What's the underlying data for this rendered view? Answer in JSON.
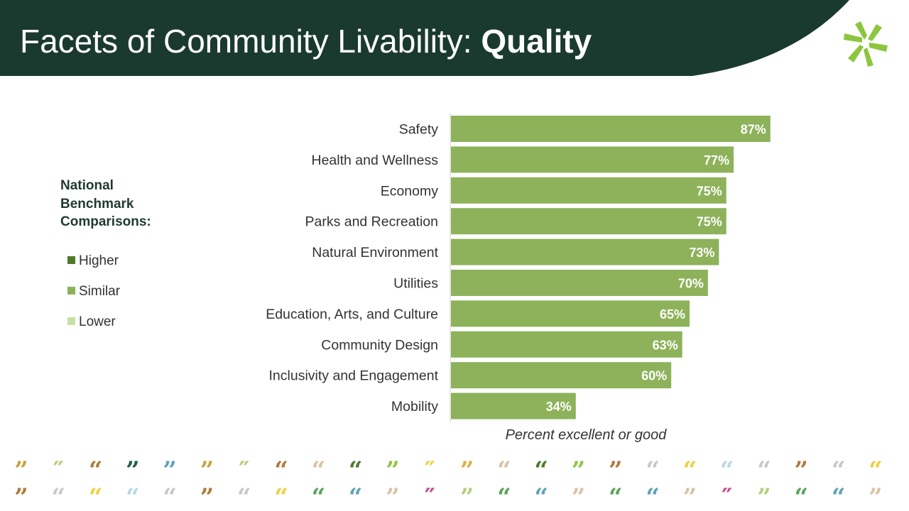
{
  "title": {
    "prefix": "Facets of Community Livability: ",
    "bold": "Quality"
  },
  "colors": {
    "header": "#1b3a2f",
    "bar": "#8db25a",
    "higher": "#4f7a2a",
    "similar": "#8db25a",
    "lower": "#c8e0a6",
    "logo": "#8cc63f"
  },
  "legend": {
    "title": "National Benchmark Comparisons:",
    "items": [
      {
        "label": "Higher",
        "color": "#4f7a2a"
      },
      {
        "label": "Similar",
        "color": "#8db25a"
      },
      {
        "label": "Lower",
        "color": "#c8e0a6"
      }
    ]
  },
  "chart_data": {
    "type": "bar",
    "orientation": "horizontal",
    "categories": [
      "Safety",
      "Health and Wellness",
      "Economy",
      "Parks and Recreation",
      "Natural Environment",
      "Utilities",
      "Education, Arts, and Culture",
      "Community Design",
      "Inclusivity and Engagement",
      "Mobility"
    ],
    "values": [
      87,
      77,
      75,
      75,
      73,
      70,
      65,
      63,
      60,
      34
    ],
    "value_labels": [
      "87%",
      "77%",
      "75%",
      "75%",
      "73%",
      "70%",
      "65%",
      "63%",
      "60%",
      "34%"
    ],
    "benchmark": [
      "Similar",
      "Similar",
      "Similar",
      "Similar",
      "Similar",
      "Similar",
      "Similar",
      "Similar",
      "Similar",
      "Similar"
    ],
    "xlabel": "Percent excellent or good",
    "xlim": [
      0,
      100
    ],
    "grid": false
  },
  "quote_colors": [
    "#c8a33c",
    "#b5cf7a",
    "#b07a3c",
    "#1f5e45",
    "#5fa3b5",
    "#c8a33c",
    "#b5cf7a",
    "#b07a3c",
    "#d9c2a3",
    "#4f7a2a",
    "#8cc63f",
    "#f0d040",
    "#e0b040",
    "#d9c2a3",
    "#4f7a2a",
    "#8cc63f",
    "#b07a3c",
    "#c8c8c8",
    "#f0d040",
    "#b7d7e3",
    "#c8c8c8",
    "#b07a3c",
    "#c8c8c8",
    "#f0d040"
  ],
  "quote_colors_row2": [
    "#b07a3c",
    "#c8c8c8",
    "#f0d040",
    "#b7d7e3",
    "#c8c8c8",
    "#b07a3c",
    "#c8c8c8",
    "#f0d040",
    "#5aa35a",
    "#5fa3b5",
    "#d9c2a3",
    "#c0508c",
    "#b5cf7a",
    "#5aa35a",
    "#5fa3b5",
    "#d9c2a3",
    "#5aa35a",
    "#5fa3b5",
    "#d9c2a3",
    "#c0508c",
    "#b5cf7a",
    "#5aa35a",
    "#5fa3b5",
    "#d9c2a3"
  ]
}
